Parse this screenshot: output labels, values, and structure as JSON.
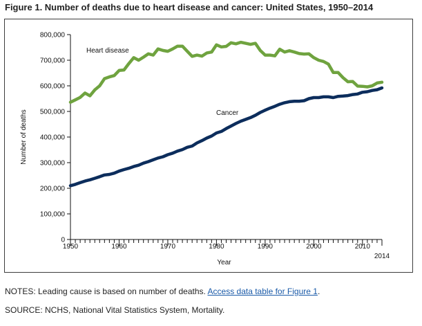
{
  "figure_title": "Figure 1. Number of deaths due to heart disease and cancer: United States, 1950–2014",
  "notes_prefix": "NOTES: Leading cause is based on number of deaths.",
  "notes_link": "Access data table for Figure 1",
  "notes_suffix": ".",
  "source": "SOURCE: NCHS, National Vital Statistics System, Mortality.",
  "chart_data": {
    "type": "line",
    "title": "",
    "xlabel": "Year",
    "ylabel": "Number of deaths",
    "xlim": [
      1950,
      2014
    ],
    "ylim": [
      0,
      800000
    ],
    "y_ticks": [
      "0",
      "100,000",
      "200,000",
      "300,000",
      "400,000",
      "500,000",
      "600,000",
      "700,000",
      "800,000"
    ],
    "x_tick_labels": [
      "1950",
      "1960",
      "1970",
      "1980",
      "1990",
      "2000",
      "2010",
      "2014"
    ],
    "grid": false,
    "legend": "inline labels",
    "x": [
      1950,
      1951,
      1952,
      1953,
      1954,
      1955,
      1956,
      1957,
      1958,
      1959,
      1960,
      1961,
      1962,
      1963,
      1964,
      1965,
      1966,
      1967,
      1968,
      1969,
      1970,
      1971,
      1972,
      1973,
      1974,
      1975,
      1976,
      1977,
      1978,
      1979,
      1980,
      1981,
      1982,
      1983,
      1984,
      1985,
      1986,
      1987,
      1988,
      1989,
      1990,
      1991,
      1992,
      1993,
      1994,
      1995,
      1996,
      1997,
      1998,
      1999,
      2000,
      2001,
      2002,
      2003,
      2004,
      2005,
      2006,
      2007,
      2008,
      2009,
      2010,
      2011,
      2012,
      2013,
      2014
    ],
    "series": [
      {
        "name": "Heart disease",
        "color": "#6fa33f",
        "values": [
          536000,
          545000,
          555000,
          572000,
          561000,
          584000,
          600000,
          628000,
          635000,
          640000,
          660000,
          662000,
          687000,
          710000,
          700000,
          712000,
          725000,
          720000,
          744000,
          738000,
          735000,
          744000,
          755000,
          755000,
          735000,
          715000,
          720000,
          716000,
          728000,
          732000,
          760000,
          752000,
          754000,
          768000,
          764000,
          770000,
          766000,
          762000,
          766000,
          738000,
          720000,
          720000,
          717000,
          743000,
          732000,
          737000,
          732000,
          726000,
          724000,
          725000,
          710000,
          700000,
          695000,
          685000,
          652000,
          652000,
          632000,
          616000,
          617000,
          599000,
          598000,
          596000,
          600000,
          611000,
          614000
        ]
      },
      {
        "name": "Cancer",
        "color": "#0c2d5c",
        "values": [
          210000,
          215000,
          222000,
          228000,
          233000,
          239000,
          245000,
          252000,
          254000,
          259000,
          267000,
          273000,
          278000,
          285000,
          290000,
          298000,
          304000,
          311000,
          318000,
          323000,
          331000,
          337000,
          345000,
          351000,
          360000,
          365000,
          377000,
          386000,
          396000,
          404000,
          416000,
          422000,
          433000,
          443000,
          453000,
          462000,
          469000,
          476000,
          485000,
          496000,
          505000,
          513000,
          520000,
          528000,
          534000,
          538000,
          540000,
          540000,
          542000,
          550000,
          554000,
          554000,
          557000,
          557000,
          554000,
          559000,
          560000,
          562000,
          566000,
          568000,
          575000,
          577000,
          582000,
          585000,
          592000
        ]
      }
    ]
  }
}
